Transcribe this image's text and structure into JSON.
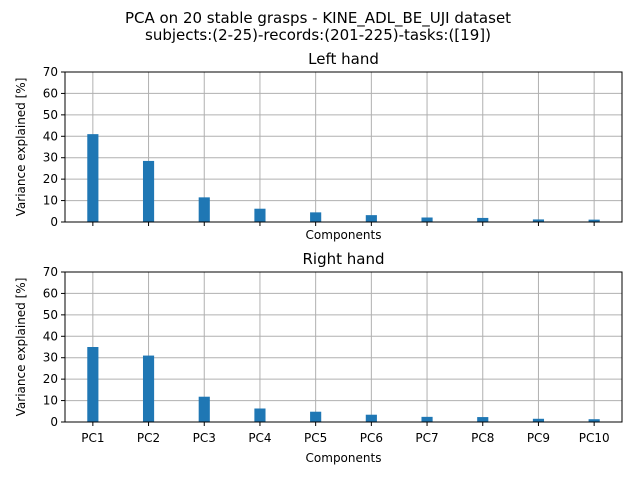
{
  "figure": {
    "suptitle_line1": "PCA on 20 stable grasps - KINE_ADL_BE_UJI dataset",
    "suptitle_line2": "subjects:(2-25)-records:(201-225)-tasks:([19])",
    "bar_color": "#1f77b4"
  },
  "chart_data": [
    {
      "type": "bar",
      "title": "Left hand",
      "xlabel": "Components",
      "ylabel": "Variance explained [%]",
      "categories": [
        "PC1",
        "PC2",
        "PC3",
        "PC4",
        "PC5",
        "PC6",
        "PC7",
        "PC8",
        "PC9",
        "PC10"
      ],
      "values": [
        41,
        28.5,
        11.5,
        6.2,
        4.5,
        3.2,
        2.1,
        1.9,
        1.2,
        1.1
      ],
      "ylim": [
        0,
        70
      ],
      "yticks": [
        "0",
        "10",
        "20",
        "30",
        "40",
        "50",
        "60",
        "70"
      ],
      "show_xtick_labels": false,
      "grid": true
    },
    {
      "type": "bar",
      "title": "Right hand",
      "xlabel": "Components",
      "ylabel": "Variance explained [%]",
      "categories": [
        "PC1",
        "PC2",
        "PC3",
        "PC4",
        "PC5",
        "PC6",
        "PC7",
        "PC8",
        "PC9",
        "PC10"
      ],
      "values": [
        35,
        31,
        11.8,
        6.3,
        4.8,
        3.4,
        2.4,
        2.3,
        1.5,
        1.3
      ],
      "ylim": [
        0,
        70
      ],
      "yticks": [
        "0",
        "10",
        "20",
        "30",
        "40",
        "50",
        "60",
        "70"
      ],
      "show_xtick_labels": true,
      "grid": true
    }
  ]
}
